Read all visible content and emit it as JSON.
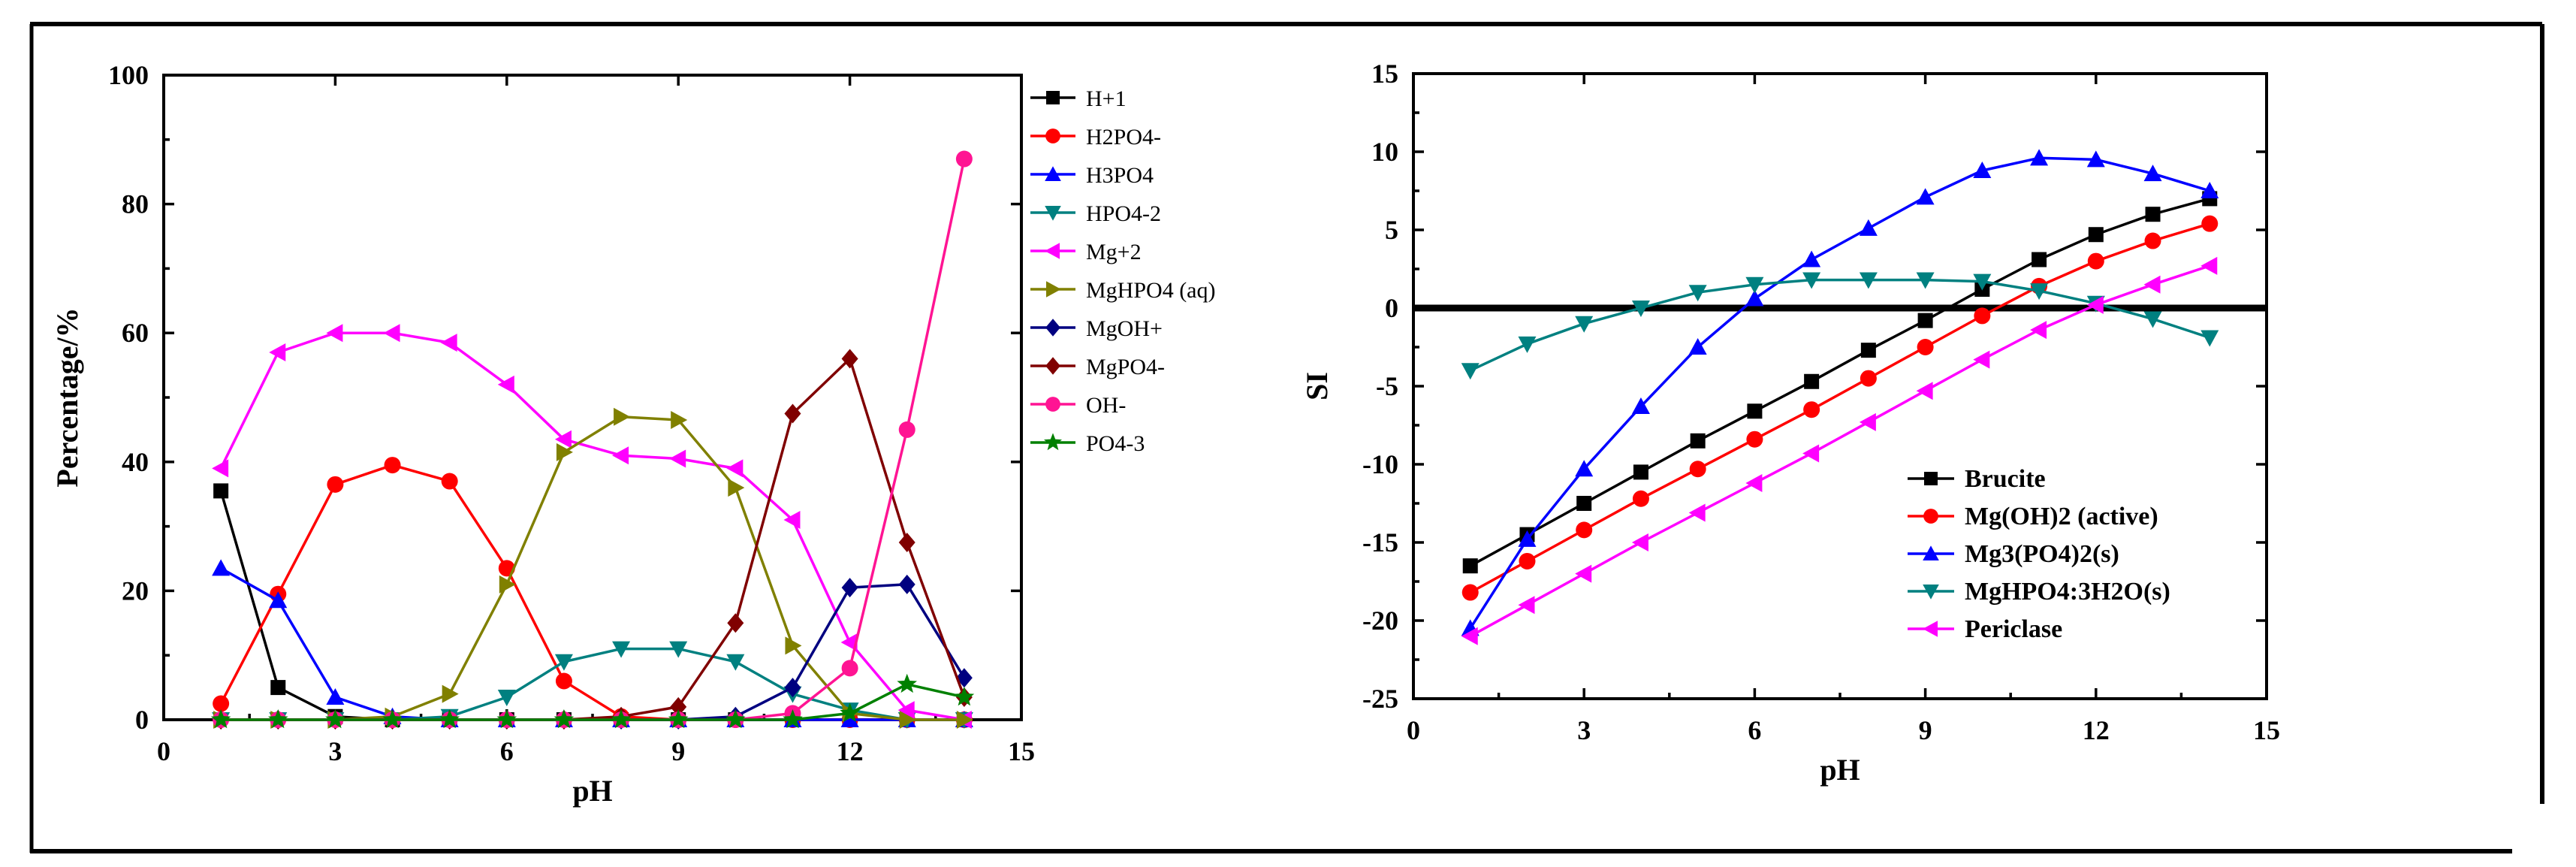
{
  "chart_data": [
    {
      "type": "line",
      "xlabel": "pH",
      "ylabel": "Percentage/%",
      "xlim": [
        0,
        15
      ],
      "ylim": [
        0,
        100
      ],
      "xticks": [
        0,
        3,
        6,
        9,
        12,
        15
      ],
      "yticks": [
        0,
        20,
        40,
        60,
        80,
        100
      ],
      "xtick_labels": [
        "0",
        "3",
        "6",
        "9",
        "12",
        "15"
      ],
      "ytick_labels": [
        "0",
        "20",
        "40",
        "60",
        "80",
        "100"
      ],
      "legend_position": "right-outside",
      "x": [
        1,
        2,
        3,
        4,
        5,
        6,
        7,
        8,
        9,
        10,
        11,
        12,
        13,
        14
      ],
      "series": [
        {
          "name": "H+1",
          "color": "#000000",
          "marker": "square",
          "values": [
            35.5,
            5,
            0.5,
            0,
            0,
            0,
            0,
            0,
            0,
            0,
            0,
            0,
            0,
            0
          ]
        },
        {
          "name": "H2PO4-",
          "color": "#ff0000",
          "marker": "circle",
          "values": [
            2.5,
            19.5,
            36.5,
            39.5,
            37,
            23.5,
            6,
            0.5,
            0,
            0,
            0,
            0,
            0,
            0
          ]
        },
        {
          "name": "H3PO4",
          "color": "#0000ff",
          "marker": "triangle-up",
          "values": [
            23.5,
            18.5,
            3.5,
            0.5,
            0,
            0,
            0,
            0,
            0,
            0,
            0,
            0,
            0,
            0
          ]
        },
        {
          "name": "HPO4-2",
          "color": "#008080",
          "marker": "triangle-down",
          "values": [
            0,
            0,
            0,
            0,
            0.5,
            3.5,
            9,
            11,
            11,
            9,
            4,
            1.5,
            0,
            0
          ]
        },
        {
          "name": "Mg+2",
          "color": "#ff00ff",
          "marker": "triangle-left",
          "values": [
            39,
            57,
            60,
            60,
            58.5,
            52,
            43.5,
            41,
            40.5,
            39,
            31,
            12,
            1.5,
            0
          ]
        },
        {
          "name": "MgHPO4 (aq)",
          "color": "#808000",
          "marker": "triangle-right",
          "values": [
            0,
            0,
            0,
            0.5,
            4,
            21,
            41.5,
            47,
            46.5,
            36,
            11.5,
            1,
            0,
            0
          ]
        },
        {
          "name": "MgOH+",
          "color": "#000080",
          "marker": "diamond",
          "values": [
            0,
            0,
            0,
            0,
            0,
            0,
            0,
            0,
            0,
            0.5,
            5,
            20.5,
            21,
            6.5
          ]
        },
        {
          "name": "MgPO4-",
          "color": "#800000",
          "marker": "diamond",
          "values": [
            0,
            0,
            0,
            0,
            0,
            0,
            0,
            0.5,
            2,
            15,
            47.5,
            56,
            27.5,
            3.5
          ]
        },
        {
          "name": "OH-",
          "color": "#ff1493",
          "marker": "circle",
          "values": [
            0,
            0,
            0,
            0,
            0,
            0,
            0,
            0,
            0,
            0,
            1,
            8,
            45,
            87
          ]
        },
        {
          "name": "PO4-3",
          "color": "#008000",
          "marker": "star",
          "values": [
            0,
            0,
            0,
            0,
            0,
            0,
            0,
            0,
            0,
            0,
            0,
            1,
            5.5,
            3.5
          ]
        }
      ]
    },
    {
      "type": "line",
      "xlabel": "pH",
      "ylabel": "SI",
      "xlim": [
        0,
        15
      ],
      "ylim": [
        -25,
        15
      ],
      "xticks": [
        0,
        3,
        6,
        9,
        12,
        15
      ],
      "yticks": [
        -25,
        -20,
        -15,
        -10,
        -5,
        0,
        5,
        10,
        15
      ],
      "xtick_labels": [
        "0",
        "3",
        "6",
        "9",
        "12",
        "15"
      ],
      "ytick_labels": [
        "-25",
        "-20",
        "-15",
        "-10",
        "-5",
        "0",
        "5",
        "10",
        "15"
      ],
      "reference_line_y": 0,
      "legend_position": "bottom-right",
      "x": [
        1,
        2,
        3,
        4,
        5,
        6,
        7,
        8,
        9,
        10,
        11,
        12,
        13,
        14
      ],
      "series": [
        {
          "name": "Brucite",
          "color": "#000000",
          "marker": "square",
          "values": [
            -16.5,
            -14.5,
            -12.5,
            -10.5,
            -8.5,
            -6.6,
            -4.7,
            -2.7,
            -0.8,
            1.2,
            3.1,
            4.7,
            6.0,
            7.0
          ]
        },
        {
          "name": "Mg(OH)2 (active)",
          "color": "#ff0000",
          "marker": "circle",
          "values": [
            -18.2,
            -16.2,
            -14.2,
            -12.2,
            -10.3,
            -8.4,
            -6.5,
            -4.5,
            -2.5,
            -0.5,
            1.4,
            3.0,
            4.3,
            5.4
          ]
        },
        {
          "name": "Mg3(PO4)2(s)",
          "color": "#0000ff",
          "marker": "triangle-up",
          "values": [
            -20.5,
            -14.8,
            -10.3,
            -6.3,
            -2.5,
            0.6,
            3.1,
            5.1,
            7.1,
            8.8,
            9.6,
            9.5,
            8.6,
            7.5
          ]
        },
        {
          "name": "MgHPO4:3H2O(s)",
          "color": "#008080",
          "marker": "triangle-down",
          "values": [
            -4.0,
            -2.3,
            -1.0,
            0,
            1.0,
            1.5,
            1.8,
            1.8,
            1.8,
            1.7,
            1.1,
            0.3,
            -0.7,
            -1.9
          ]
        },
        {
          "name": "Periclase",
          "color": "#ff00ff",
          "marker": "triangle-left",
          "values": [
            -21.0,
            -19.0,
            -17.0,
            -15.0,
            -13.1,
            -11.2,
            -9.3,
            -7.3,
            -5.3,
            -3.3,
            -1.4,
            0.2,
            1.5,
            2.7
          ]
        }
      ]
    }
  ]
}
